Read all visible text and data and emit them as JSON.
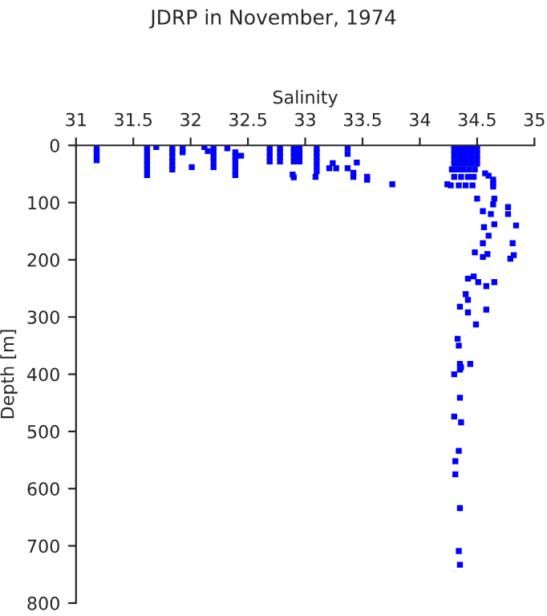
{
  "chart_data": {
    "type": "scatter",
    "title": "JDRP in November, 1974",
    "xlabel": "Salinity",
    "ylabel": "Depth [m]",
    "x": [
      31.18,
      31.18,
      31.18,
      31.18,
      31.62,
      31.62,
      31.62,
      31.62,
      31.62,
      31.62,
      31.62,
      31.7,
      31.84,
      31.84,
      31.84,
      31.84,
      31.84,
      31.84,
      31.93,
      31.93,
      32.01,
      32.12,
      32.15,
      32.2,
      32.2,
      32.2,
      32.2,
      32.2,
      32.32,
      32.39,
      32.39,
      32.39,
      32.39,
      32.39,
      32.39,
      32.44,
      32.69,
      32.69,
      32.69,
      32.69,
      32.78,
      32.78,
      32.78,
      32.78,
      32.9,
      32.9,
      32.9,
      32.9,
      32.89,
      32.9,
      32.95,
      32.95,
      32.95,
      32.95,
      33.1,
      33.1,
      33.1,
      33.1,
      33.1,
      33.1,
      33.09,
      33.24,
      33.21,
      33.27,
      33.37,
      33.37,
      33.37,
      33.42,
      33.42,
      33.45,
      33.54,
      33.54,
      33.76,
      34.3,
      34.35,
      34.4,
      34.45,
      34.5,
      34.3,
      34.35,
      34.4,
      34.45,
      34.5,
      34.3,
      34.35,
      34.4,
      34.45,
      34.5,
      34.3,
      34.35,
      34.4,
      34.45,
      34.5,
      34.3,
      34.35,
      34.4,
      34.45,
      34.5,
      34.28,
      34.33,
      34.38,
      34.43,
      34.48,
      34.3,
      34.36,
      34.42,
      34.47,
      34.27,
      34.34,
      34.4,
      34.46,
      34.24,
      34.57,
      34.6,
      34.64,
      34.64,
      34.64,
      34.5,
      34.65,
      34.64,
      34.77,
      34.55,
      34.62,
      34.77,
      34.56,
      34.65,
      34.84,
      34.6,
      34.81,
      34.55,
      34.48,
      34.55,
      34.59,
      34.82,
      34.79,
      34.47,
      34.42,
      34.51,
      34.58,
      34.65,
      34.4,
      34.42,
      34.35,
      34.42,
      34.58,
      34.49,
      34.33,
      34.34,
      34.35,
      34.44,
      34.36,
      34.3,
      34.35,
      34.35,
      34.3,
      34.36,
      34.34,
      34.31,
      34.31,
      34.35,
      34.34,
      34.35
    ],
    "values": [
      5,
      12,
      20,
      26,
      3,
      10,
      18,
      26,
      34,
      42,
      52,
      3,
      5,
      12,
      20,
      28,
      36,
      42,
      5,
      12,
      38,
      3,
      10,
      3,
      12,
      20,
      28,
      38,
      5,
      12,
      20,
      28,
      36,
      44,
      52,
      18,
      5,
      12,
      20,
      28,
      5,
      12,
      20,
      28,
      5,
      12,
      20,
      28,
      51,
      56,
      5,
      12,
      20,
      28,
      5,
      12,
      20,
      28,
      36,
      45,
      55,
      31,
      40,
      40,
      5,
      15,
      40,
      48,
      55,
      30,
      55,
      60,
      68,
      0,
      0,
      0,
      0,
      0,
      8,
      8,
      8,
      8,
      8,
      16,
      16,
      16,
      16,
      16,
      24,
      24,
      24,
      24,
      24,
      32,
      32,
      32,
      32,
      32,
      42,
      42,
      42,
      42,
      42,
      55,
      55,
      55,
      55,
      70,
      70,
      70,
      70,
      68,
      49,
      53,
      60,
      66,
      72,
      93,
      93,
      103,
      108,
      115,
      120,
      120,
      143,
      138,
      140,
      158,
      171,
      171,
      187,
      195,
      190,
      192,
      198,
      229,
      233,
      239,
      246,
      239,
      260,
      270,
      282,
      292,
      287,
      313,
      338,
      350,
      382,
      382,
      388,
      400,
      392,
      441,
      474,
      484,
      534,
      552,
      575,
      634,
      709,
      733
    ],
    "color": "#0000ff",
    "marker": "square",
    "xlim": [
      31,
      35
    ],
    "ylim": [
      800,
      0
    ],
    "xticks": [
      31,
      31.5,
      32,
      32.5,
      33,
      33.5,
      34,
      34.5,
      35
    ],
    "yticks": [
      0,
      100,
      200,
      300,
      400,
      500,
      600,
      700,
      800
    ],
    "grid": false,
    "legend": false
  }
}
